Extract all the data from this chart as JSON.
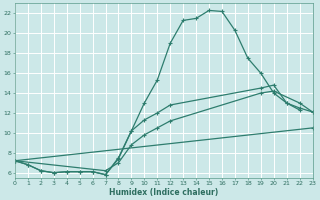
{
  "xlabel": "Humidex (Indice chaleur)",
  "bg_color": "#cce8e8",
  "grid_color": "#ffffff",
  "line_color": "#2e7d6e",
  "xlim": [
    0,
    23
  ],
  "ylim": [
    5.5,
    23.0
  ],
  "xticks": [
    0,
    1,
    2,
    3,
    4,
    5,
    6,
    7,
    8,
    9,
    10,
    11,
    12,
    13,
    14,
    15,
    16,
    17,
    18,
    19,
    20,
    21,
    22,
    23
  ],
  "yticks": [
    6,
    8,
    10,
    12,
    14,
    16,
    18,
    20,
    22
  ],
  "line1_x": [
    0,
    1,
    2,
    3,
    4,
    5,
    6,
    7,
    8,
    9,
    10,
    11,
    12,
    13,
    14,
    15,
    16,
    17,
    18,
    19,
    20,
    21,
    22
  ],
  "line1_y": [
    7.2,
    6.8,
    6.2,
    6.0,
    6.1,
    6.1,
    6.1,
    5.8,
    7.4,
    10.2,
    13.0,
    15.3,
    19.0,
    21.3,
    21.5,
    22.3,
    22.2,
    20.3,
    17.5,
    16.0,
    14.0,
    13.0,
    12.3
  ],
  "line2_x": [
    0,
    1,
    2,
    3,
    4,
    5,
    6,
    7,
    8,
    9,
    10,
    11,
    12,
    19,
    20,
    21,
    22,
    23
  ],
  "line2_y": [
    7.2,
    6.8,
    6.2,
    6.0,
    6.1,
    6.1,
    6.1,
    5.8,
    7.5,
    10.2,
    11.3,
    12.0,
    12.8,
    14.5,
    14.8,
    13.0,
    12.5,
    12.1
  ],
  "line3_x": [
    0,
    7,
    8,
    9,
    10,
    11,
    12,
    19,
    20,
    22,
    23
  ],
  "line3_y": [
    7.2,
    6.2,
    7.0,
    8.8,
    9.8,
    10.5,
    11.2,
    14.0,
    14.2,
    13.0,
    12.1
  ],
  "line4_x": [
    0,
    23
  ],
  "line4_y": [
    7.2,
    10.5
  ]
}
